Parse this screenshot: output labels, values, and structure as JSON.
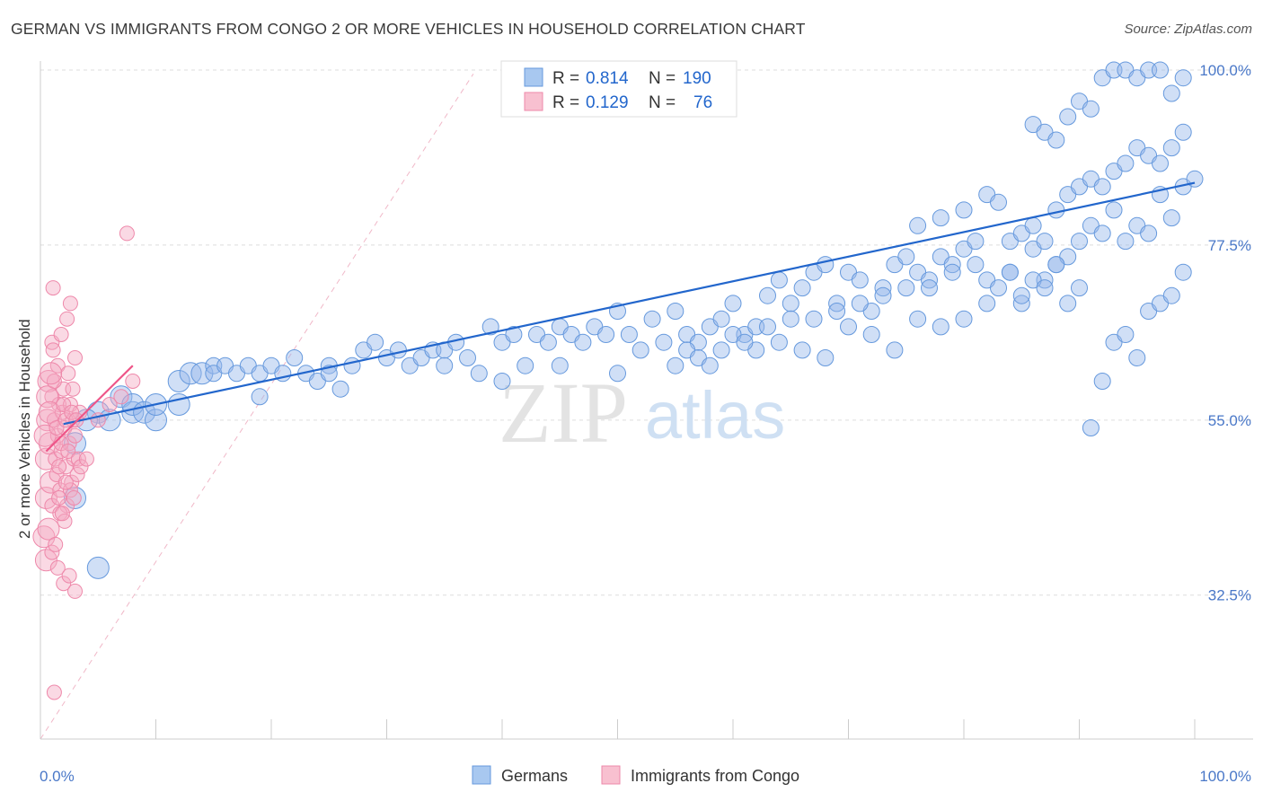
{
  "title": "GERMAN VS IMMIGRANTS FROM CONGO 2 OR MORE VEHICLES IN HOUSEHOLD CORRELATION CHART",
  "source": "Source: ZipAtlas.com",
  "watermark": {
    "zip": "ZIP",
    "atlas": "atlas"
  },
  "chart_data": {
    "type": "scatter",
    "xlabel": "",
    "ylabel": "2 or more Vehicles in Household",
    "xlim": [
      0,
      100
    ],
    "ylim": [
      14,
      100
    ],
    "x_tick_labels": [
      "0.0%",
      "100.0%"
    ],
    "y_ticks": [
      {
        "value": 32.5,
        "label": "32.5%"
      },
      {
        "value": 55.0,
        "label": "55.0%"
      },
      {
        "value": 77.5,
        "label": "77.5%"
      },
      {
        "value": 100.0,
        "label": "100.0%"
      }
    ],
    "grid": true,
    "legend_position": "top-center",
    "series": [
      {
        "name": "Germans",
        "color": "#6699dd",
        "line_color": "#2266cc",
        "R": "0.814",
        "N": "190",
        "trend": [
          [
            2,
            54.5
          ],
          [
            100,
            85.5
          ]
        ],
        "points": [
          [
            3,
            45
          ],
          [
            3,
            52
          ],
          [
            5,
            36
          ],
          [
            5,
            56
          ],
          [
            4,
            55
          ],
          [
            6,
            55
          ],
          [
            7,
            58
          ],
          [
            8,
            56
          ],
          [
            8,
            57
          ],
          [
            9,
            56
          ],
          [
            10,
            55
          ],
          [
            10,
            57
          ],
          [
            12,
            60
          ],
          [
            12,
            57
          ],
          [
            13,
            61
          ],
          [
            14,
            61
          ],
          [
            15,
            62
          ],
          [
            15,
            61
          ],
          [
            16,
            62
          ],
          [
            17,
            61
          ],
          [
            18,
            62
          ],
          [
            19,
            61
          ],
          [
            19,
            58
          ],
          [
            20,
            62
          ],
          [
            21,
            61
          ],
          [
            22,
            63
          ],
          [
            23,
            61
          ],
          [
            24,
            60
          ],
          [
            25,
            62
          ],
          [
            25,
            61
          ],
          [
            26,
            59
          ],
          [
            27,
            62
          ],
          [
            28,
            64
          ],
          [
            29,
            65
          ],
          [
            30,
            63
          ],
          [
            31,
            64
          ],
          [
            32,
            62
          ],
          [
            33,
            63
          ],
          [
            34,
            64
          ],
          [
            35,
            64
          ],
          [
            36,
            65
          ],
          [
            37,
            63
          ],
          [
            38,
            61
          ],
          [
            39,
            67
          ],
          [
            40,
            65
          ],
          [
            41,
            66
          ],
          [
            42,
            62
          ],
          [
            43,
            66
          ],
          [
            44,
            65
          ],
          [
            45,
            67
          ],
          [
            46,
            66
          ],
          [
            47,
            65
          ],
          [
            48,
            67
          ],
          [
            49,
            66
          ],
          [
            50,
            69
          ],
          [
            51,
            66
          ],
          [
            52,
            64
          ],
          [
            53,
            68
          ],
          [
            54,
            65
          ],
          [
            55,
            69
          ],
          [
            56,
            66
          ],
          [
            57,
            65
          ],
          [
            58,
            67
          ],
          [
            59,
            68
          ],
          [
            60,
            70
          ],
          [
            61,
            66
          ],
          [
            62,
            67
          ],
          [
            63,
            71
          ],
          [
            64,
            73
          ],
          [
            65,
            70
          ],
          [
            66,
            72
          ],
          [
            67,
            74
          ],
          [
            68,
            75
          ],
          [
            69,
            70
          ],
          [
            70,
            74
          ],
          [
            71,
            73
          ],
          [
            72,
            69
          ],
          [
            73,
            72
          ],
          [
            74,
            75
          ],
          [
            75,
            76
          ],
          [
            76,
            74
          ],
          [
            77,
            73
          ],
          [
            78,
            76
          ],
          [
            79,
            75
          ],
          [
            80,
            77
          ],
          [
            81,
            78
          ],
          [
            82,
            73
          ],
          [
            83,
            72
          ],
          [
            84,
            74
          ],
          [
            85,
            70
          ],
          [
            86,
            77
          ],
          [
            87,
            73
          ],
          [
            88,
            75
          ],
          [
            89,
            76
          ],
          [
            90,
            78
          ],
          [
            91,
            80
          ],
          [
            92,
            79
          ],
          [
            93,
            82
          ],
          [
            94,
            78
          ],
          [
            95,
            80
          ],
          [
            96,
            79
          ],
          [
            97,
            84
          ],
          [
            98,
            81
          ],
          [
            99,
            85
          ],
          [
            100,
            86
          ],
          [
            76,
            80
          ],
          [
            78,
            81
          ],
          [
            80,
            82
          ],
          [
            82,
            84
          ],
          [
            83,
            83
          ],
          [
            84,
            78
          ],
          [
            85,
            79
          ],
          [
            86,
            80
          ],
          [
            87,
            78
          ],
          [
            88,
            82
          ],
          [
            89,
            84
          ],
          [
            90,
            85
          ],
          [
            91,
            86
          ],
          [
            92,
            85
          ],
          [
            93,
            87
          ],
          [
            94,
            88
          ],
          [
            95,
            90
          ],
          [
            96,
            89
          ],
          [
            97,
            88
          ],
          [
            98,
            90
          ],
          [
            99,
            92
          ],
          [
            86,
            93
          ],
          [
            87,
            92
          ],
          [
            88,
            91
          ],
          [
            89,
            94
          ],
          [
            90,
            96
          ],
          [
            91,
            95
          ],
          [
            92,
            99
          ],
          [
            93,
            100
          ],
          [
            94,
            100
          ],
          [
            95,
            99
          ],
          [
            96,
            100
          ],
          [
            97,
            100
          ],
          [
            98,
            97
          ],
          [
            99,
            99
          ],
          [
            80,
            68
          ],
          [
            82,
            70
          ],
          [
            84,
            74
          ],
          [
            85,
            71
          ],
          [
            86,
            73
          ],
          [
            87,
            72
          ],
          [
            88,
            75
          ],
          [
            89,
            70
          ],
          [
            90,
            72
          ],
          [
            91,
            54
          ],
          [
            92,
            60
          ],
          [
            93,
            65
          ],
          [
            94,
            66
          ],
          [
            95,
            63
          ],
          [
            96,
            69
          ],
          [
            97,
            70
          ],
          [
            98,
            71
          ],
          [
            99,
            74
          ],
          [
            60,
            66
          ],
          [
            62,
            64
          ],
          [
            64,
            65
          ],
          [
            66,
            64
          ],
          [
            68,
            63
          ],
          [
            70,
            67
          ],
          [
            72,
            66
          ],
          [
            74,
            64
          ],
          [
            76,
            68
          ],
          [
            78,
            67
          ],
          [
            35,
            62
          ],
          [
            40,
            60
          ],
          [
            45,
            62
          ],
          [
            50,
            61
          ],
          [
            55,
            62
          ],
          [
            56,
            64
          ],
          [
            57,
            63
          ],
          [
            58,
            62
          ],
          [
            59,
            64
          ],
          [
            61,
            65
          ],
          [
            63,
            67
          ],
          [
            65,
            68
          ],
          [
            67,
            68
          ],
          [
            69,
            69
          ],
          [
            71,
            70
          ],
          [
            73,
            71
          ],
          [
            75,
            72
          ],
          [
            77,
            72
          ],
          [
            79,
            74
          ],
          [
            81,
            75
          ]
        ]
      },
      {
        "name": "Immigrants from Congo",
        "color": "#ee88aa",
        "line_color": "#ee5588",
        "R": "0.129",
        "N": "76",
        "trend": [
          [
            0.5,
            51
          ],
          [
            8,
            62
          ]
        ],
        "points": [
          [
            0.3,
            40
          ],
          [
            0.5,
            45
          ],
          [
            0.5,
            50
          ],
          [
            0.6,
            55
          ],
          [
            0.7,
            60
          ],
          [
            0.8,
            52
          ],
          [
            0.9,
            47
          ],
          [
            1.0,
            58
          ],
          [
            1.0,
            65
          ],
          [
            1.1,
            72
          ],
          [
            1.2,
            55
          ],
          [
            1.3,
            50
          ],
          [
            1.4,
            48
          ],
          [
            1.5,
            62
          ],
          [
            1.5,
            53
          ],
          [
            1.6,
            57
          ],
          [
            1.7,
            46
          ],
          [
            1.8,
            51
          ],
          [
            1.9,
            56
          ],
          [
            2.0,
            59
          ],
          [
            2.1,
            54
          ],
          [
            2.2,
            49
          ],
          [
            2.3,
            44
          ],
          [
            2.4,
            61
          ],
          [
            2.5,
            52
          ],
          [
            2.6,
            57
          ],
          [
            2.7,
            47
          ],
          [
            2.8,
            55
          ],
          [
            2.9,
            50
          ],
          [
            3.0,
            63
          ],
          [
            0.4,
            53
          ],
          [
            0.6,
            58
          ],
          [
            0.8,
            56
          ],
          [
            1.0,
            44
          ],
          [
            1.2,
            60
          ],
          [
            1.4,
            54
          ],
          [
            1.6,
            49
          ],
          [
            1.8,
            52
          ],
          [
            2.0,
            57
          ],
          [
            2.2,
            55
          ],
          [
            2.4,
            51
          ],
          [
            2.6,
            46
          ],
          [
            2.8,
            59
          ],
          [
            3.0,
            53
          ],
          [
            3.2,
            48
          ],
          [
            3.4,
            56
          ],
          [
            0.5,
            37
          ],
          [
            1.0,
            38
          ],
          [
            1.5,
            36
          ],
          [
            2.0,
            34
          ],
          [
            2.5,
            35
          ],
          [
            3.0,
            33
          ],
          [
            1.2,
            20
          ],
          [
            1.8,
            66
          ],
          [
            2.3,
            68
          ],
          [
            2.6,
            70
          ],
          [
            1.1,
            64
          ],
          [
            0.9,
            61
          ],
          [
            1.7,
            43
          ],
          [
            2.1,
            42
          ],
          [
            2.9,
            45
          ],
          [
            3.3,
            50
          ],
          [
            0.7,
            41
          ],
          [
            1.3,
            39
          ],
          [
            1.9,
            43
          ],
          [
            2.7,
            56
          ],
          [
            3.1,
            55
          ],
          [
            3.5,
            49
          ],
          [
            4,
            50
          ],
          [
            5,
            55
          ],
          [
            6,
            57
          ],
          [
            7,
            58
          ],
          [
            8,
            60
          ],
          [
            1.6,
            45
          ],
          [
            2.2,
            47
          ],
          [
            7.5,
            79
          ]
        ]
      }
    ]
  }
}
